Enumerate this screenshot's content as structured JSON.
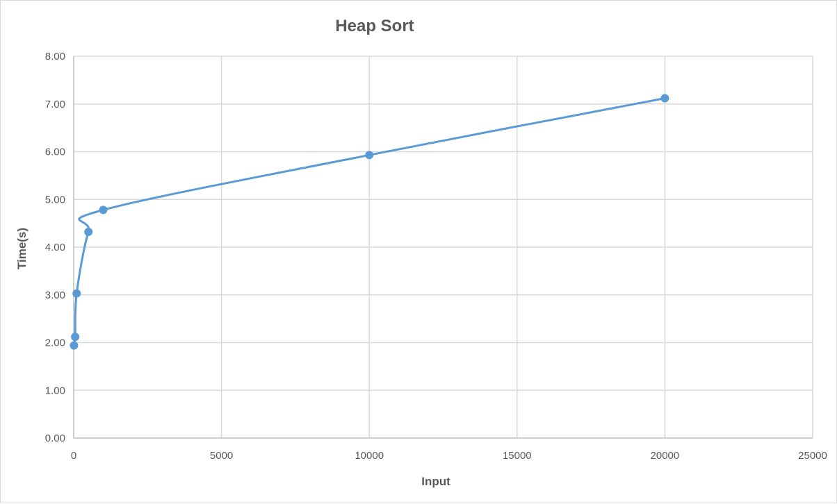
{
  "chart_data": {
    "type": "scatter",
    "title": "Heap Sort",
    "xlabel": "Input",
    "ylabel": "Time(s)",
    "xlim": [
      0,
      25000
    ],
    "ylim": [
      0,
      8
    ],
    "x_ticks": [
      "0",
      "5000",
      "10000",
      "15000",
      "20000",
      "25000"
    ],
    "y_ticks": [
      "0.00",
      "1.00",
      "2.00",
      "3.00",
      "4.00",
      "5.00",
      "6.00",
      "7.00",
      "8.00"
    ],
    "grid": true,
    "legend": "none",
    "line_style": "smooth",
    "series": [
      {
        "color": "#5b9bd5",
        "points": [
          {
            "x": 10,
            "y": 1.94
          },
          {
            "x": 50,
            "y": 2.12
          },
          {
            "x": 100,
            "y": 3.03
          },
          {
            "x": 500,
            "y": 4.32
          },
          {
            "x": 1000,
            "y": 4.78
          },
          {
            "x": 10000,
            "y": 5.93
          },
          {
            "x": 20000,
            "y": 7.12
          }
        ]
      }
    ]
  }
}
